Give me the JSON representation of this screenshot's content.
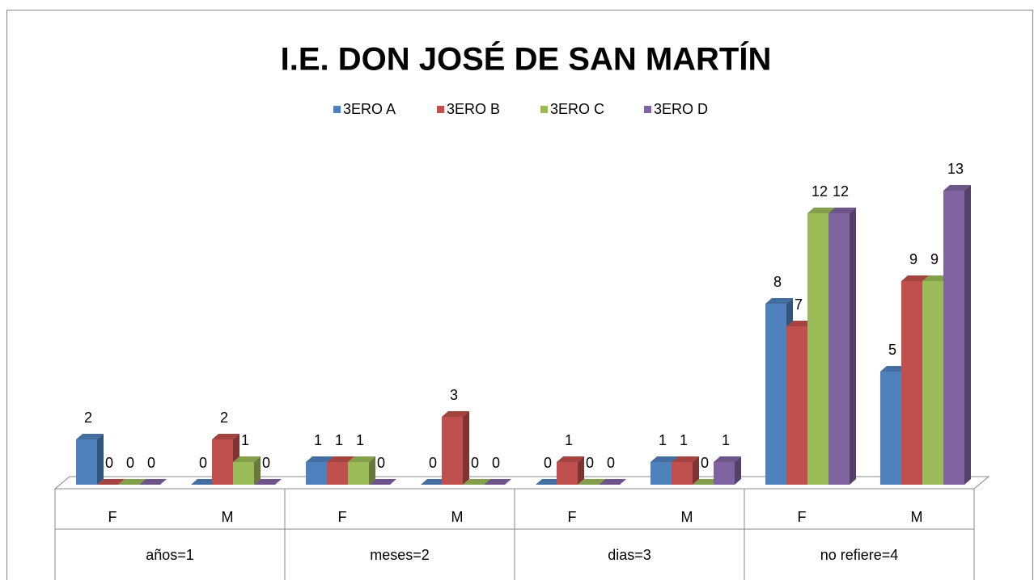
{
  "chart_data": {
    "type": "bar3d",
    "title": "I.E. DON JOSÉ DE SAN MARTÍN",
    "categories": [
      "F",
      "M",
      "F",
      "M",
      "F",
      "M",
      "F",
      "M"
    ],
    "groups": [
      "años=1",
      "meses=2",
      "dias=3",
      "no refiere=4"
    ],
    "series": [
      {
        "name": "3ERO A",
        "color": "#4f81bd",
        "values": [
          2,
          0,
          1,
          0,
          0,
          1,
          8,
          5
        ]
      },
      {
        "name": "3ERO B",
        "color": "#c0504d",
        "values": [
          0,
          2,
          1,
          3,
          1,
          1,
          7,
          9
        ]
      },
      {
        "name": "3ERO C",
        "color": "#9bbb59",
        "values": [
          0,
          1,
          1,
          0,
          0,
          0,
          12,
          9
        ]
      },
      {
        "name": "3ERO D",
        "color": "#8064a2",
        "values": [
          0,
          0,
          0,
          0,
          0,
          1,
          12,
          13
        ]
      }
    ],
    "legend": "top"
  }
}
